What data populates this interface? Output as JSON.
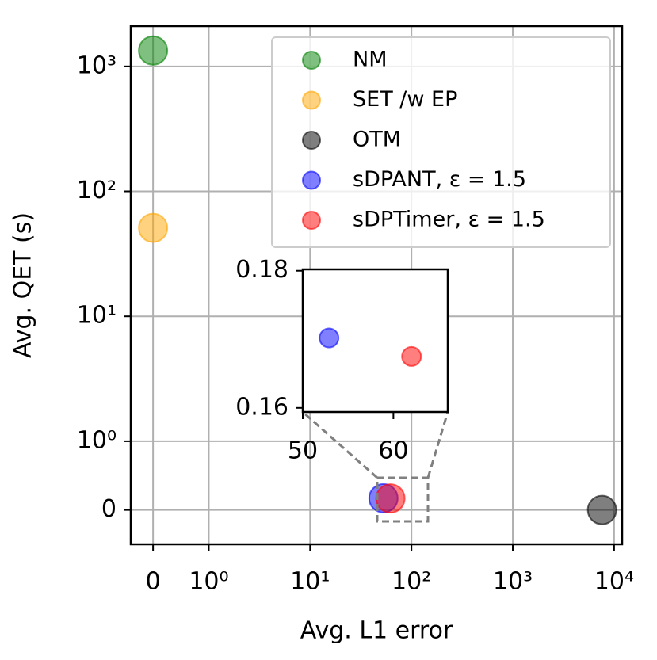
{
  "chart_data": {
    "type": "scatter",
    "x_label": "Avg. L1 error",
    "y_label": "Avg. QET (s)",
    "xscale": "symlog",
    "yscale": "symlog",
    "linthresh": 1,
    "xlim": [
      -0.4,
      12000
    ],
    "ylim": [
      -0.5,
      2100
    ],
    "xticks": [
      0,
      {
        "value": 1,
        "label": "10⁰"
      },
      {
        "value": 10,
        "label": "10¹"
      },
      {
        "value": 100,
        "label": "10²"
      },
      {
        "value": 1000,
        "label": "10³"
      },
      {
        "value": 10000,
        "label": "10⁴"
      }
    ],
    "yticks": [
      0,
      {
        "value": 1,
        "label": "10⁰"
      },
      {
        "value": 10,
        "label": "10¹"
      },
      {
        "value": 100,
        "label": "10²"
      },
      {
        "value": 1000,
        "label": "10³"
      }
    ],
    "grid": true,
    "legend": "upper right",
    "series": [
      {
        "name": "NM",
        "color": "#008000",
        "x": [
          0
        ],
        "y": [
          1340
        ]
      },
      {
        "name": "SET /w EP",
        "color": "#ffa500",
        "x": [
          0
        ],
        "y": [
          51
        ]
      },
      {
        "name": "OTM",
        "color": "#000000",
        "x": [
          7600
        ],
        "y": [
          0
        ]
      },
      {
        "name": "sDPANT, ε = 1.5",
        "color": "#0000ff",
        "x": [
          52.9
        ],
        "y": [
          0.1702
        ]
      },
      {
        "name": "sDPTimer, ε = 1.5",
        "color": "#ff0000",
        "x": [
          62
        ],
        "y": [
          0.1675
        ]
      }
    ],
    "inset": {
      "xlim": [
        50,
        66
      ],
      "ylim": [
        0.1594,
        0.1802
      ],
      "xticks": [
        50,
        60
      ],
      "yticks": [
        0.16,
        0.18
      ]
    }
  }
}
